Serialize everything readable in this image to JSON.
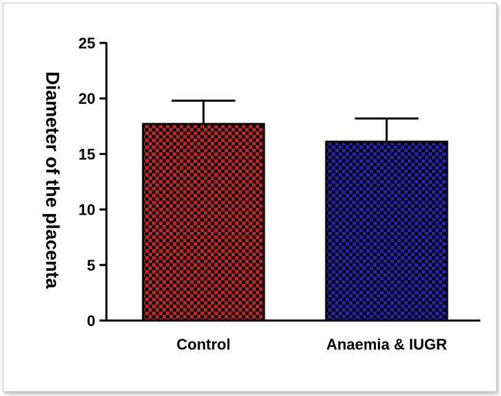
{
  "chart_data": {
    "type": "bar",
    "title": "",
    "xlabel": "",
    "ylabel": "Diameter of the placenta",
    "categories": [
      "Control",
      "Anaemia & IUGR"
    ],
    "values": [
      17.7,
      16.1
    ],
    "error_bars": [
      2.1,
      2.1
    ],
    "ylim": [
      0,
      25
    ],
    "yticks": [
      0,
      5,
      10,
      15,
      20,
      25
    ],
    "bar_colors": [
      "#c8201e",
      "#2323b4"
    ],
    "bar_pattern": "checkerboard",
    "grid": false,
    "legend": "none"
  }
}
